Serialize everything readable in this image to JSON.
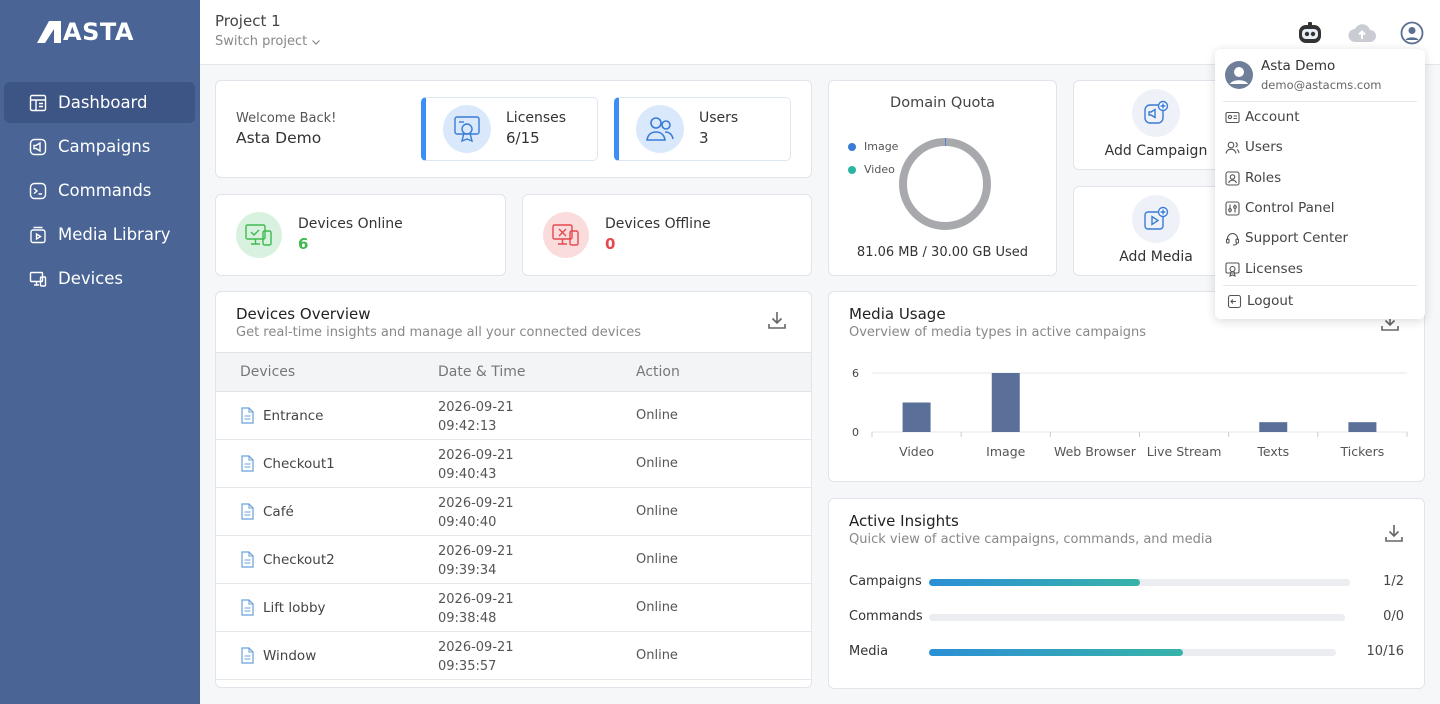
{
  "brand": {
    "name": "ASTA"
  },
  "sidebar": {
    "items": [
      {
        "label": "Dashboard",
        "icon": "dashboard-icon"
      },
      {
        "label": "Campaigns",
        "icon": "campaign-icon"
      },
      {
        "label": "Commands",
        "icon": "terminal-icon"
      },
      {
        "label": "Media Library",
        "icon": "media-icon"
      },
      {
        "label": "Devices",
        "icon": "devices-icon"
      }
    ]
  },
  "header": {
    "project": "Project 1",
    "switch_label": "Switch project"
  },
  "welcome": {
    "greeting": "Welcome Back!",
    "name": "Asta Demo"
  },
  "stats": {
    "licenses": {
      "label": "Licenses",
      "value": "6/15"
    },
    "users": {
      "label": "Users",
      "value": "3"
    },
    "online": {
      "label": "Devices Online",
      "value": "6",
      "color": "#3fb950"
    },
    "offline": {
      "label": "Devices Offline",
      "value": "0",
      "color": "#e5484d"
    }
  },
  "devices_overview": {
    "title": "Devices Overview",
    "subtitle": "Get real-time insights and manage all your connected devices",
    "columns": [
      "Devices",
      "Date & Time",
      "Action"
    ],
    "rows": [
      {
        "name": "Entrance",
        "date": "2026-09-21",
        "time": "09:42:13",
        "action": "Online"
      },
      {
        "name": "Checkout1",
        "date": "2026-09-21",
        "time": "09:40:43",
        "action": "Online"
      },
      {
        "name": "Café",
        "date": "2026-09-21",
        "time": "09:40:40",
        "action": "Online"
      },
      {
        "name": "Checkout2",
        "date": "2026-09-21",
        "time": "09:39:34",
        "action": "Online"
      },
      {
        "name": "Lift lobby",
        "date": "2026-09-21",
        "time": "09:38:48",
        "action": "Online"
      },
      {
        "name": "Window",
        "date": "2026-09-21",
        "time": "09:35:57",
        "action": "Online"
      }
    ]
  },
  "quota": {
    "title": "Domain Quota",
    "legend": [
      {
        "label": "Image",
        "color": "#3a7bd5"
      },
      {
        "label": "Video",
        "color": "#2bb5a0"
      }
    ],
    "used_text": "81.06 MB / 30.00 GB Used",
    "used_fraction": 0.0026
  },
  "quick": {
    "add_campaign": "Add Campaign",
    "add_media": "Add Media"
  },
  "media_usage": {
    "title": "Media Usage",
    "subtitle": "Overview of media types in active campaigns"
  },
  "chart_data": {
    "type": "bar",
    "categories": [
      "Video",
      "Image",
      "Web Browser",
      "Live Stream",
      "Texts",
      "Tickers"
    ],
    "values": [
      3,
      6,
      0,
      0,
      1,
      1
    ],
    "yticks": [
      0,
      6
    ],
    "ylim": [
      0,
      6
    ],
    "color": "#5a7098",
    "title": "",
    "xlabel": "",
    "ylabel": ""
  },
  "insights": {
    "title": "Active Insights",
    "subtitle": "Quick view of active campaigns, commands, and media",
    "rows": [
      {
        "label": "Campaigns",
        "count": "1/2",
        "fraction": 0.5
      },
      {
        "label": "Commands",
        "count": "0/0",
        "fraction": 0
      },
      {
        "label": "Media",
        "count": "10/16",
        "fraction": 0.625
      }
    ]
  },
  "user_menu": {
    "name": "Asta Demo",
    "email": "demo@astacms.com",
    "items": [
      {
        "label": "Account",
        "icon": "account-icon"
      },
      {
        "label": "Users",
        "icon": "users-icon"
      },
      {
        "label": "Roles",
        "icon": "roles-icon"
      },
      {
        "label": "Control Panel",
        "icon": "control-panel-icon"
      },
      {
        "label": "Support Center",
        "icon": "support-icon"
      },
      {
        "label": "Licenses",
        "icon": "licenses-icon"
      }
    ],
    "logout": "Logout"
  }
}
